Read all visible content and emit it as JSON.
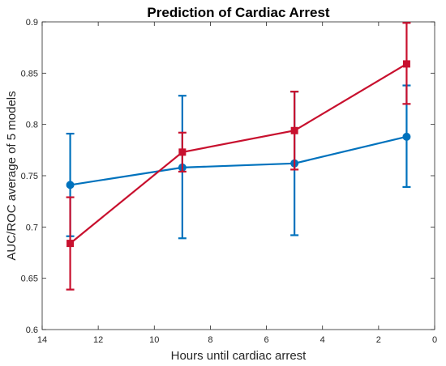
{
  "chart_data": {
    "type": "line",
    "title": "Prediction of Cardiac Arrest",
    "xlabel": "Hours until cardiac arrest",
    "ylabel": "AUC/ROC average of 5 models",
    "xlim": [
      0,
      14
    ],
    "x_reversed": true,
    "ylim": [
      0.6,
      0.9
    ],
    "xticks": [
      14,
      12,
      10,
      8,
      6,
      4,
      2,
      0
    ],
    "yticks": [
      0.6,
      0.65,
      0.7,
      0.75,
      0.8,
      0.85,
      0.9
    ],
    "xtick_labels": [
      "14",
      "12",
      "10",
      "8",
      "6",
      "4",
      "2",
      "0"
    ],
    "ytick_labels": [
      "0.6",
      "0.65",
      "0.7",
      "0.75",
      "0.8",
      "0.85",
      "0.9"
    ],
    "grid": false,
    "series": [
      {
        "color": "#0072BD",
        "marker": "circle",
        "points": [
          {
            "x": 13,
            "y": 0.741,
            "err_low": 0.691,
            "err_high": 0.791
          },
          {
            "x": 9,
            "y": 0.758,
            "err_low": 0.689,
            "err_high": 0.828
          },
          {
            "x": 5,
            "y": 0.762,
            "err_low": 0.692,
            "err_high": 0.832
          },
          {
            "x": 1,
            "y": 0.788,
            "err_low": 0.739,
            "err_high": 0.838
          }
        ]
      },
      {
        "color": "#C8102E",
        "marker": "square",
        "points": [
          {
            "x": 13,
            "y": 0.684,
            "err_low": 0.639,
            "err_high": 0.729
          },
          {
            "x": 9,
            "y": 0.773,
            "err_low": 0.754,
            "err_high": 0.792
          },
          {
            "x": 5,
            "y": 0.794,
            "err_low": 0.756,
            "err_high": 0.832
          },
          {
            "x": 1,
            "y": 0.859,
            "err_low": 0.82,
            "err_high": 0.899
          }
        ]
      }
    ]
  }
}
